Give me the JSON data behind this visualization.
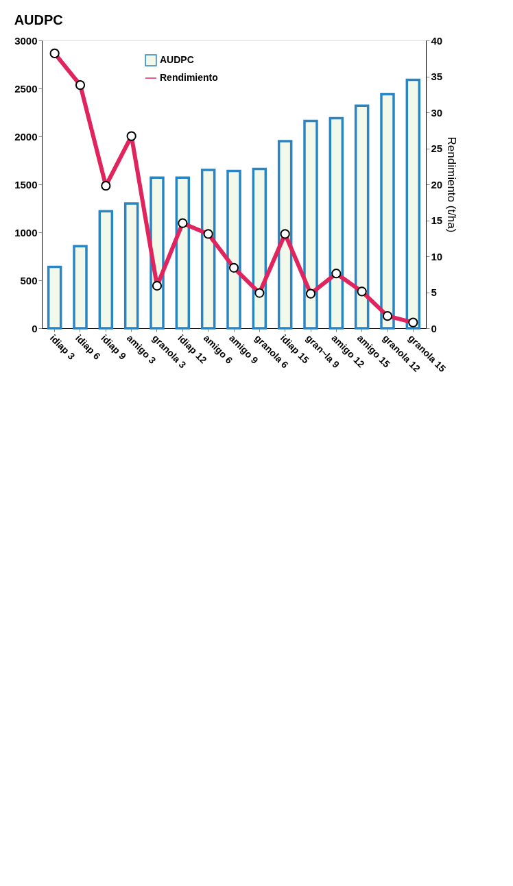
{
  "chart_data": {
    "type": "bar",
    "title": "AUDPC",
    "y2label": "Rendimiento (t/ha)",
    "categories": [
      "idiap 3",
      "idiap 6",
      "idiap 9",
      "amigo 3",
      "granola 3",
      "idiap 12",
      "amigo 6",
      "amigo 9",
      "granola 6",
      "idiap 15",
      "gran~la 9",
      "amigo 12",
      "amigo 15",
      "granola 12",
      "granola 15"
    ],
    "series": [
      {
        "name": "AUDPC",
        "color": "#2a85c4",
        "values": [
          640,
          855,
          1220,
          1300,
          1570,
          1570,
          1650,
          1640,
          1660,
          1950,
          2160,
          2190,
          2320,
          2440,
          2590
        ]
      },
      {
        "name": "Rendimiento",
        "type": "line",
        "axis": "y2",
        "color": "#e0245e",
        "values": [
          38.2,
          33.8,
          19.8,
          26.7,
          5.9,
          14.6,
          13.1,
          8.4,
          4.9,
          13.1,
          4.8,
          7.6,
          5.1,
          1.7,
          0.8
        ]
      }
    ],
    "ylim": [
      0,
      3000
    ],
    "yticks": [
      0,
      500,
      1000,
      1500,
      2000,
      2500,
      3000
    ],
    "y2lim": [
      0,
      40
    ],
    "y2ticks": [
      0,
      5,
      10,
      15,
      20,
      25,
      30,
      35,
      40
    ],
    "grid": false,
    "legend": "top",
    "marker": "circle",
    "line_style": "solid"
  }
}
